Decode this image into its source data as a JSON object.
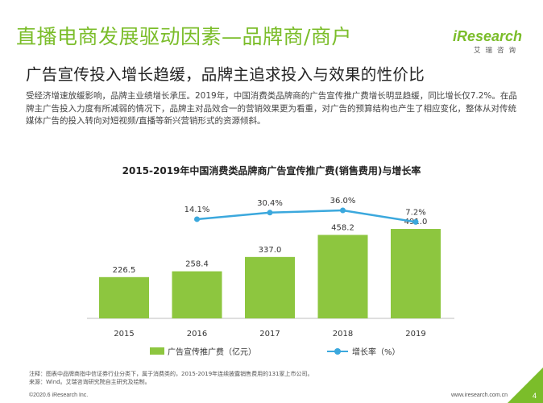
{
  "header": {
    "title": "直播电商发展驱动因素—品牌商/商户",
    "subtitle": "广告宣传投入增长趋缓，品牌主追求投入与效果的性价比"
  },
  "logo": {
    "main": "iResearch",
    "sub": "艾瑞咨询"
  },
  "body_text": "受经济增速放缓影响，品牌主业绩增长承压。2019年，中国消费类品牌商的广告宣传推广费增长明显趋缓，同比增长仅7.2%。在品牌主广告投入力度有所减弱的情况下，品牌主对品效合一的营销效果更为看重，对广告的预算结构也产生了相应变化，整体从对传统媒体广告的投入转向对短视频/直播等新兴营销形式的资源倾斜。",
  "colors": {
    "accent": "#7bbd2a",
    "bar": "#8dc63f",
    "line": "#3ba8dd"
  },
  "chart_data": {
    "type": "bar",
    "title": "2015-2019年中国消费类品牌商广告宣传推广费(销售费用)与增长率",
    "categories": [
      "2015",
      "2016",
      "2017",
      "2018",
      "2019"
    ],
    "series": [
      {
        "name": "广告宣传推广费（亿元）",
        "type": "bar",
        "values": [
          226.5,
          258.4,
          337.0,
          458.2,
          491.0
        ],
        "labels": [
          "226.5",
          "258.4",
          "337.0",
          "458.2",
          "491.0"
        ]
      },
      {
        "name": "增长率（%）",
        "type": "line",
        "values": [
          null,
          14.1,
          30.4,
          36.0,
          7.2
        ],
        "labels": [
          "",
          "14.1%",
          "30.4%",
          "36.0%",
          "7.2%"
        ]
      }
    ],
    "legend_position": "bottom",
    "grid": false
  },
  "notes": {
    "line1": "注释：图表中品牌商指中信证券行业分类下，属于消费类的，2015-2019年连续披露销售费用的131家上市公司。",
    "line2": "来源：Wind。艾瑞咨询研究院自主研究及绘制。"
  },
  "footer": {
    "copyright": "©2020.6 iResearch Inc.",
    "website": "www.iresearch.com.cn",
    "page": "4"
  }
}
